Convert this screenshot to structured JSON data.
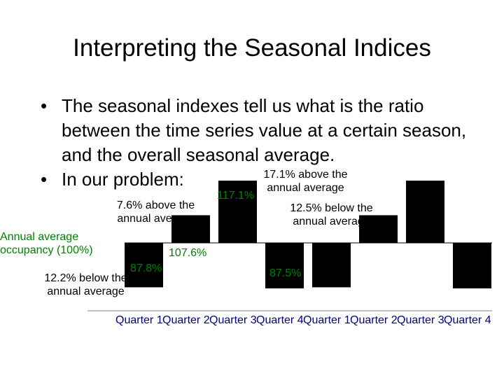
{
  "slide": {
    "title": "Interpreting the Seasonal Indices",
    "bullets": [
      "The seasonal indexes tell us what is the ratio between the time series value at a certain season, and the overall seasonal average.",
      "In our problem:"
    ],
    "bullet_symbol": "•"
  },
  "annotations": {
    "annual_average": [
      "Annual average",
      "occupancy (100%)"
    ],
    "q1_note": [
      "12.2% below the",
      "annual average"
    ],
    "q2_note": [
      "7.6% above the",
      "annual average"
    ],
    "q3_note": [
      "17.1% above the",
      "annual average"
    ],
    "q4_note": [
      "12.5% below the",
      "annual average"
    ]
  },
  "chart_data": {
    "type": "bar",
    "baseline": 100,
    "categories": [
      "Quarter 1",
      "Quarter 2",
      "Quarter 3",
      "Quarter 4",
      "Quarter 1",
      "Quarter 2",
      "Quarter 3",
      "Quarter 4"
    ],
    "values": [
      87.8,
      107.6,
      117.1,
      87.5,
      87.8,
      107.6,
      117.1,
      87.5
    ],
    "data_labels": [
      "87.8%",
      "107.6%",
      "117.1%",
      "87.5%",
      "",
      "",
      "",
      ""
    ],
    "bar_color": "#000000",
    "label_color": "#008000"
  }
}
